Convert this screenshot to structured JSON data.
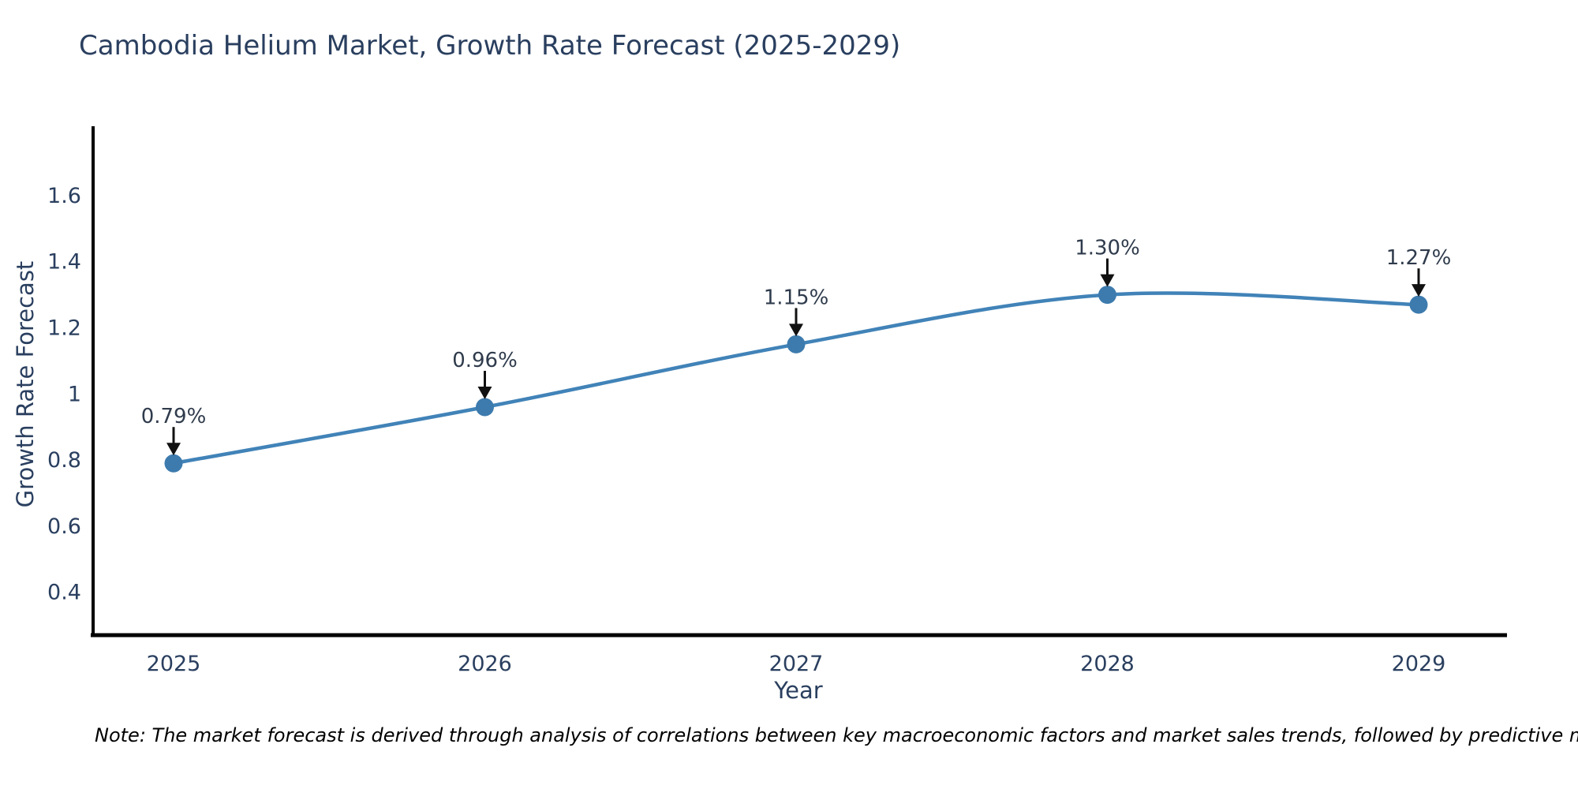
{
  "title": "Cambodia Helium Market, Growth Rate Forecast (2025-2029)",
  "note": "Note: The market forecast is derived through analysis of correlations between key macroeconomic factors and market sales trends, followed by predictive modeling to project future sales",
  "chart_data": {
    "type": "line",
    "title": "Cambodia Helium Market, Growth Rate Forecast (2025-2029)",
    "xlabel": "Year",
    "ylabel": "Growth Rate Forecast",
    "x": [
      2025,
      2026,
      2027,
      2028,
      2029
    ],
    "xtick_labels": [
      "2025",
      "2026",
      "2027",
      "2028",
      "2029"
    ],
    "series": [
      {
        "name": "Growth Rate Forecast",
        "values": [
          0.79,
          0.96,
          1.15,
          1.3,
          1.27
        ],
        "point_labels": [
          "0.79%",
          "0.96%",
          "1.15%",
          "1.30%",
          "1.27%"
        ]
      }
    ],
    "yticks": [
      0.4,
      0.6,
      0.8,
      1,
      1.2,
      1.4,
      1.6
    ],
    "ytick_labels": [
      "0.4",
      "0.6",
      "0.8",
      "1",
      "1.2",
      "1.4",
      "1.6"
    ],
    "ylim": [
      0.27,
      1.81
    ],
    "grid": false,
    "legend_position": "none",
    "line_shape": "spline",
    "colors": {
      "line": "#4183b8",
      "marker": "#3d7bae",
      "axis_line": "#000000",
      "tick_text": "#2a3f5f",
      "annotation_text": "#2f3b4c",
      "annotation_arrow": "#111111",
      "title_text": "#2a3f5f"
    }
  }
}
